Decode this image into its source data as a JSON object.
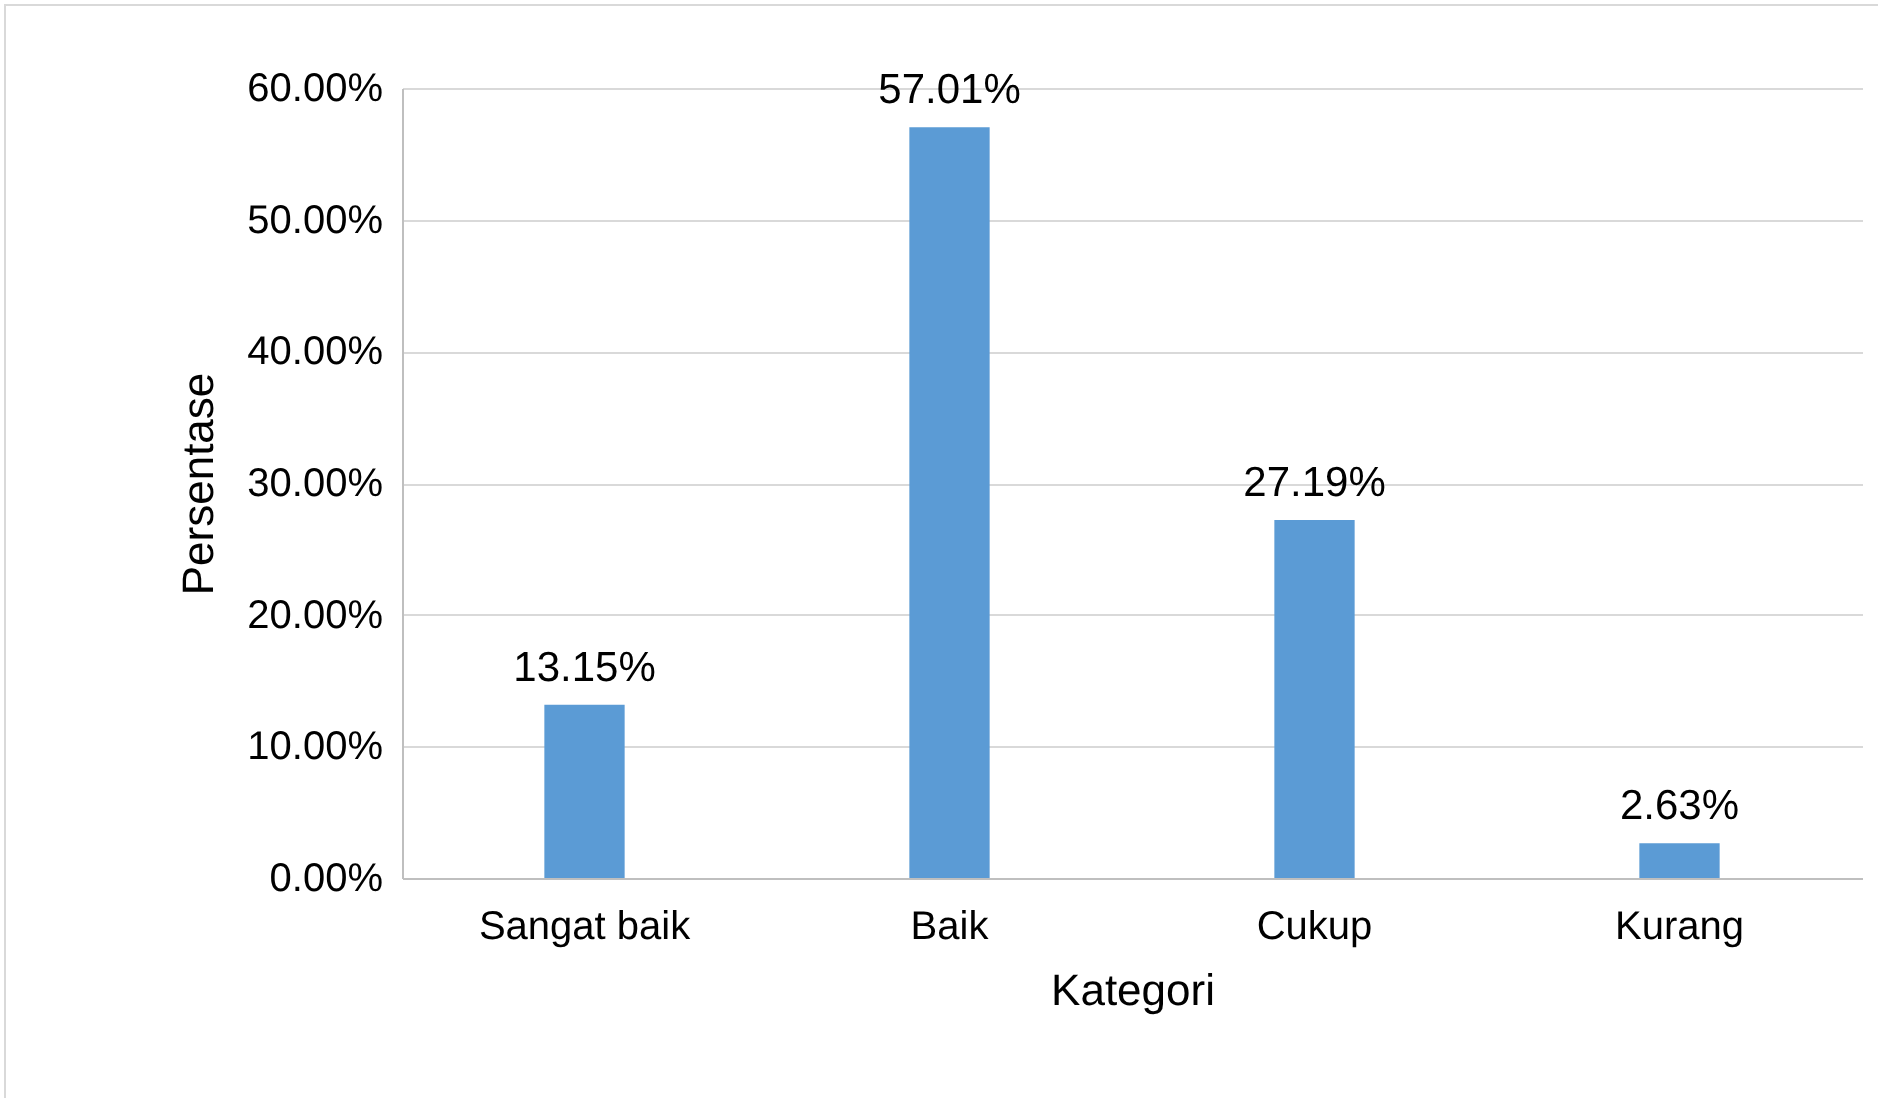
{
  "chart_data": {
    "type": "bar",
    "xlabel": "Kategori",
    "ylabel": "Persentase",
    "categories": [
      "Sangat baik",
      "Baik",
      "Cukup",
      "Kurang"
    ],
    "values": [
      13.15,
      57.01,
      27.19,
      2.63
    ],
    "value_labels": [
      "13.15%",
      "57.01%",
      "27.19%",
      "2.63%"
    ],
    "color": "#5b9bd5",
    "ylim": [
      0,
      60
    ],
    "yticks": [
      {
        "value": 0,
        "label": "0.00%"
      },
      {
        "value": 10,
        "label": "10.00%"
      },
      {
        "value": 20,
        "label": "20.00%"
      },
      {
        "value": 30,
        "label": "30.00%"
      },
      {
        "value": 40,
        "label": "40.00%"
      },
      {
        "value": 50,
        "label": "50.00%"
      },
      {
        "value": 60,
        "label": "60.00%"
      }
    ],
    "grid": true
  }
}
